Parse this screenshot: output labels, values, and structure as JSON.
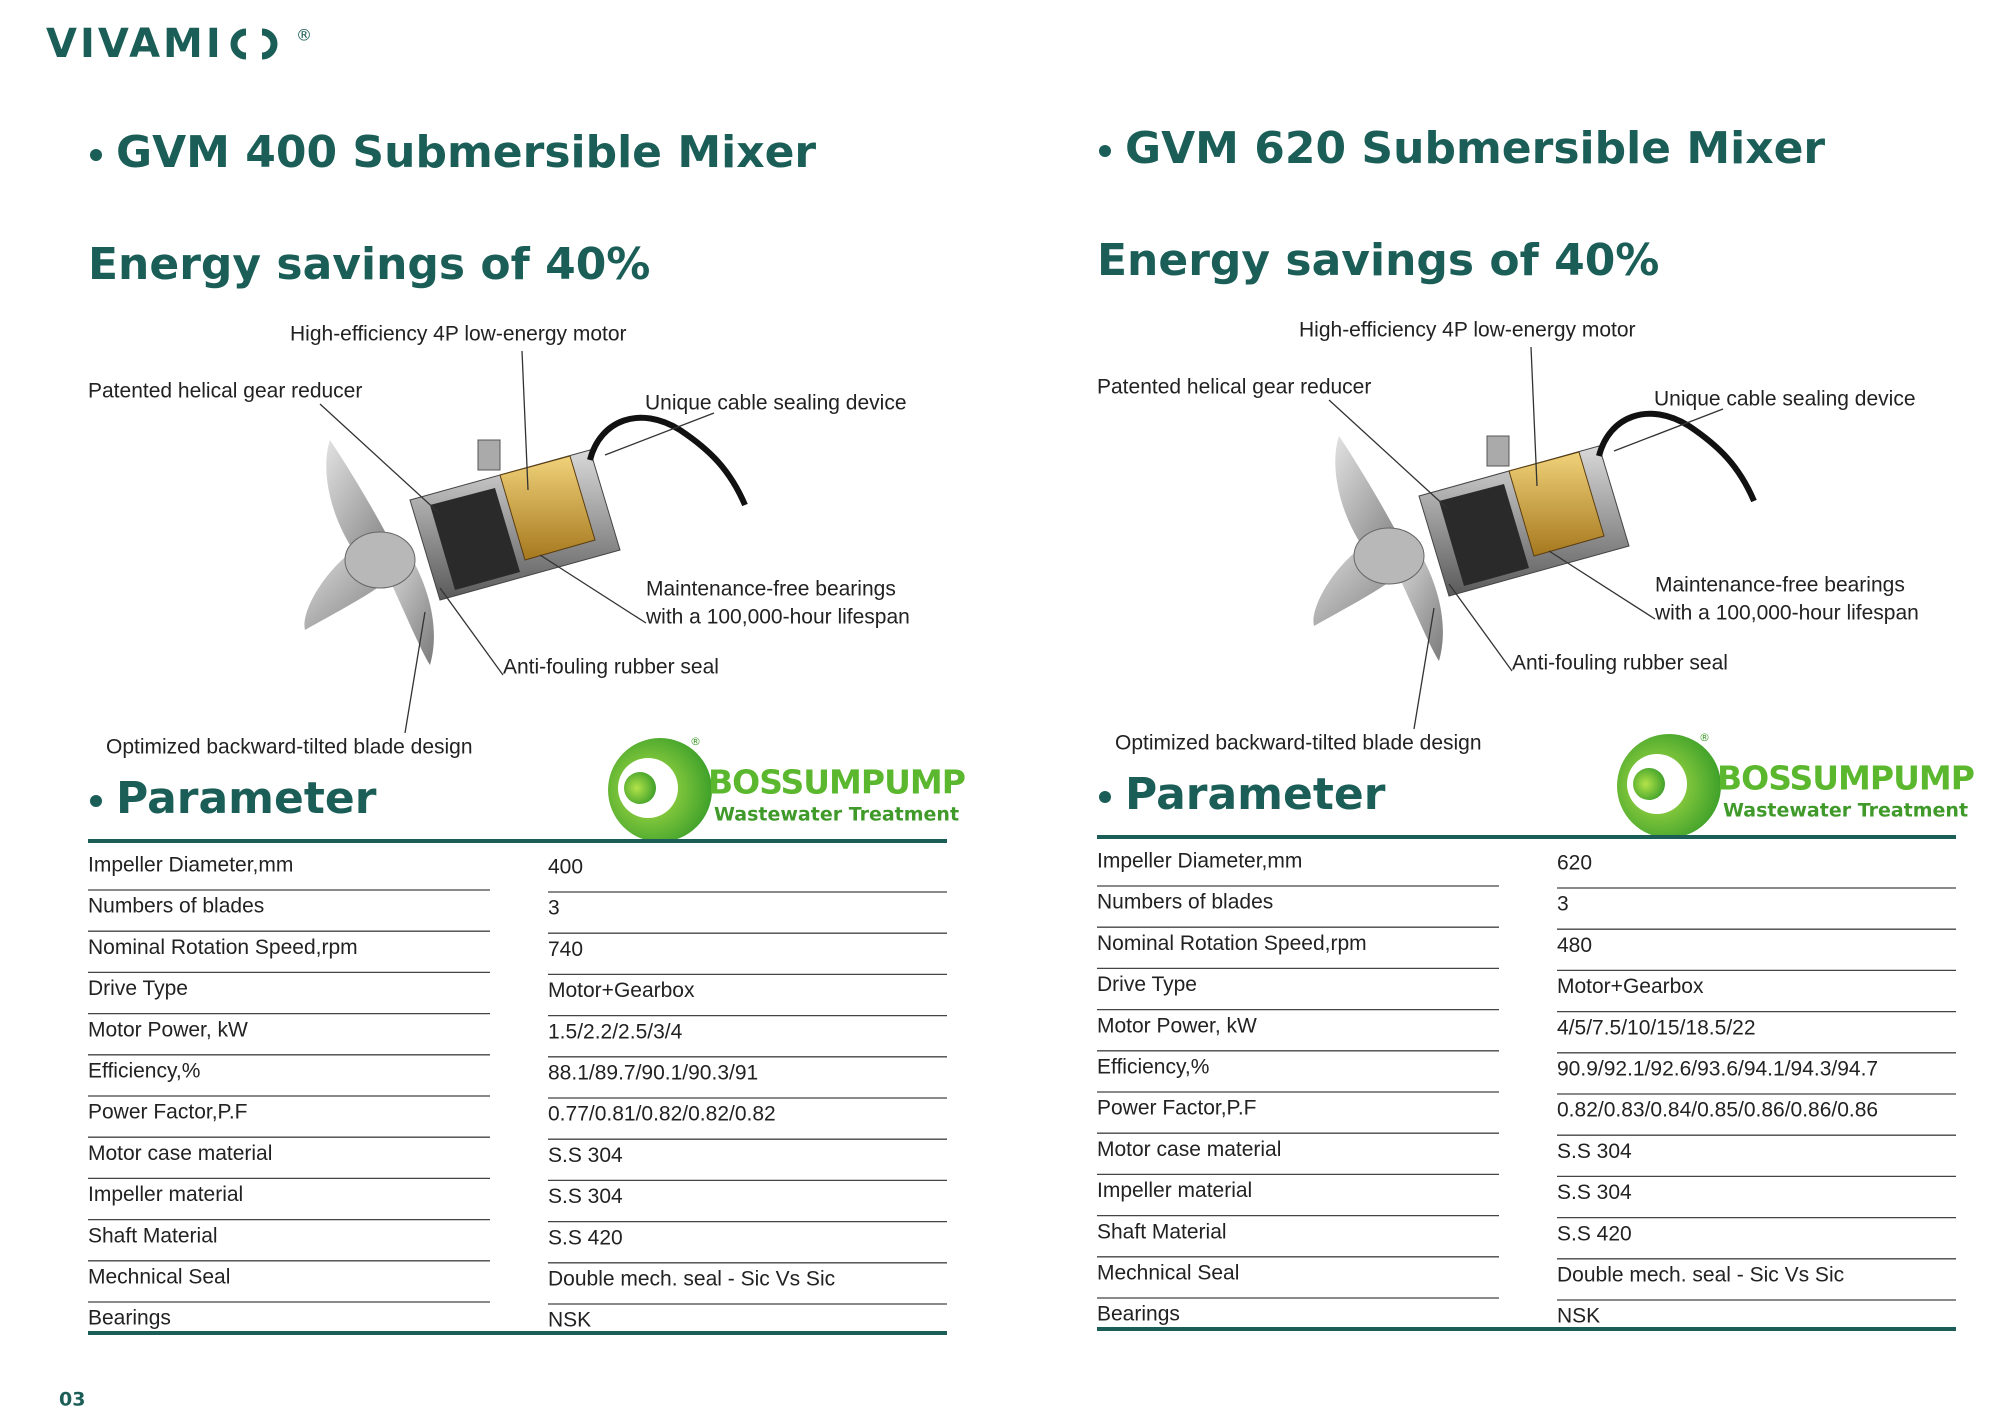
{
  "header": {
    "logo": "VIVAMI",
    "registered": "®"
  },
  "products": [
    {
      "title": "GVM 400 Submersible Mixer",
      "subtitle": "Energy savings of 40%",
      "callouts": [
        {
          "lines": [
            "High-efficiency 4P low-energy motor"
          ]
        },
        {
          "lines": [
            "Patented helical gear reducer"
          ]
        },
        {
          "lines": [
            "Unique cable sealing device"
          ]
        },
        {
          "lines": [
            "Maintenance-free bearings",
            "with a 100,000-hour lifespan"
          ]
        },
        {
          "lines": [
            "Anti-fouling rubber seal"
          ]
        },
        {
          "lines": [
            "Optimized backward-tilted blade design"
          ]
        }
      ],
      "parameter_heading": "Parameter",
      "brand": {
        "name": "BOSSUMPUMP",
        "tagline": "Wastewater Treatment",
        "registered": "®"
      },
      "table": {
        "rows": [
          [
            "Impeller Diameter,mm",
            "400"
          ],
          [
            "Numbers of blades",
            "3"
          ],
          [
            "Nominal Rotation Speed,rpm",
            "740"
          ],
          [
            "Drive Type",
            "Motor+Gearbox"
          ],
          [
            "Motor Power, kW",
            "1.5/2.2/2.5/3/4"
          ],
          [
            "Efficiency,%",
            "88.1/89.7/90.1/90.3/91"
          ],
          [
            "Power Factor,P.F",
            "0.77/0.81/0.82/0.82/0.82"
          ],
          [
            "Motor case material",
            "S.S 304"
          ],
          [
            "Impeller material",
            "S.S 304"
          ],
          [
            "Shaft Material",
            "S.S 420"
          ],
          [
            "Mechnical Seal",
            "Double mech. seal - Sic Vs Sic"
          ],
          [
            "Bearings",
            "NSK"
          ]
        ]
      }
    },
    {
      "title": "GVM 620 Submersible Mixer",
      "subtitle": "Energy savings of 40%",
      "callouts": [
        {
          "lines": [
            "High-efficiency 4P low-energy motor"
          ]
        },
        {
          "lines": [
            "Patented helical gear reducer"
          ]
        },
        {
          "lines": [
            "Unique cable sealing device"
          ]
        },
        {
          "lines": [
            "Maintenance-free bearings",
            "with a 100,000-hour lifespan"
          ]
        },
        {
          "lines": [
            "Anti-fouling rubber seal"
          ]
        },
        {
          "lines": [
            "Optimized backward-tilted blade design"
          ]
        }
      ],
      "parameter_heading": "Parameter",
      "brand": {
        "name": "BOSSUMPUMP",
        "tagline": "Wastewater Treatment",
        "registered": "®"
      },
      "table": {
        "rows": [
          [
            "Impeller Diameter,mm",
            "620"
          ],
          [
            "Numbers of blades",
            "3"
          ],
          [
            "Nominal Rotation Speed,rpm",
            "480"
          ],
          [
            "Drive Type",
            "Motor+Gearbox"
          ],
          [
            "Motor Power, kW",
            "4/5/7.5/10/15/18.5/22"
          ],
          [
            "Efficiency,%",
            "90.9/92.1/92.6/93.6/94.1/94.3/94.7"
          ],
          [
            "Power Factor,P.F",
            "0.82/0.83/0.84/0.85/0.86/0.86/0.86"
          ],
          [
            "Motor case material",
            "S.S 304"
          ],
          [
            "Impeller material",
            "S.S 304"
          ],
          [
            "Shaft Material",
            "S.S 420"
          ],
          [
            "Mechnical Seal",
            "Double mech. seal - Sic Vs Sic"
          ],
          [
            "Bearings",
            "NSK"
          ]
        ]
      }
    }
  ],
  "footer": {
    "page_number": "03"
  }
}
